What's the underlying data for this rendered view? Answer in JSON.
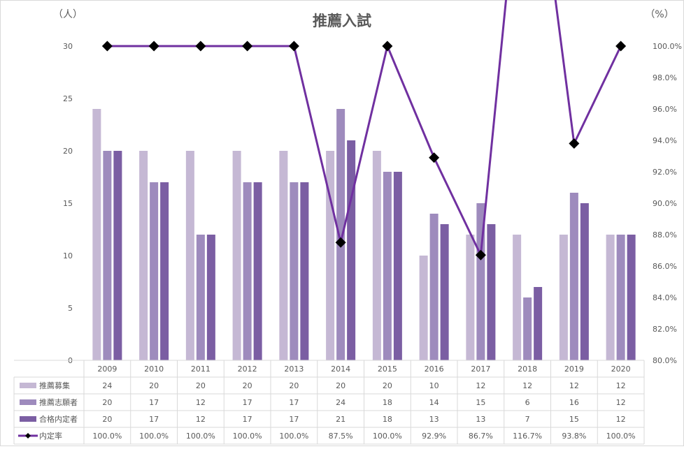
{
  "chart_data": {
    "type": "bar",
    "title": "推薦入試",
    "left_unit": "（人）",
    "right_unit": "（%）",
    "categories": [
      "2009",
      "2010",
      "2011",
      "2012",
      "2013",
      "2014",
      "2015",
      "2016",
      "2017",
      "2018",
      "2019",
      "2020"
    ],
    "ylim": [
      0,
      30
    ],
    "y_ticks": [
      "0",
      "5",
      "10",
      "15",
      "20",
      "25",
      "30"
    ],
    "y2lim": [
      80,
      100
    ],
    "y2_ticks": [
      "80.0%",
      "82.0%",
      "84.0%",
      "86.0%",
      "88.0%",
      "90.0%",
      "92.0%",
      "94.0%",
      "96.0%",
      "98.0%",
      "100.0%"
    ],
    "grid": false,
    "series": [
      {
        "name": "推薦募集",
        "kind": "bar",
        "color": "#c5b8d4",
        "values": [
          24,
          20,
          20,
          20,
          20,
          20,
          20,
          10,
          12,
          12,
          12,
          12
        ]
      },
      {
        "name": "推薦志願者",
        "kind": "bar",
        "color": "#9e8bbd",
        "values": [
          20,
          17,
          12,
          17,
          17,
          24,
          18,
          14,
          15,
          6,
          16,
          12
        ]
      },
      {
        "name": "合格内定者",
        "kind": "bar",
        "color": "#7b5ea3",
        "values": [
          20,
          17,
          12,
          17,
          17,
          21,
          18,
          13,
          13,
          7,
          15,
          12
        ]
      },
      {
        "name": "内定率",
        "kind": "line",
        "color": "#7030a0",
        "marker_color": "#000000",
        "values": [
          100.0,
          100.0,
          100.0,
          100.0,
          100.0,
          87.5,
          100.0,
          92.9,
          86.7,
          116.7,
          93.8,
          100.0
        ]
      }
    ],
    "table": {
      "rows": [
        [
          "24",
          "20",
          "20",
          "20",
          "20",
          "20",
          "20",
          "10",
          "12",
          "12",
          "12",
          "12"
        ],
        [
          "20",
          "17",
          "12",
          "17",
          "17",
          "24",
          "18",
          "14",
          "15",
          "6",
          "16",
          "12"
        ],
        [
          "20",
          "17",
          "12",
          "17",
          "17",
          "21",
          "18",
          "13",
          "13",
          "7",
          "15",
          "12"
        ],
        [
          "100.0%",
          "100.0%",
          "100.0%",
          "100.0%",
          "100.0%",
          "87.5%",
          "100.0%",
          "92.9%",
          "86.7%",
          "116.7%",
          "93.8%",
          "100.0%"
        ]
      ]
    }
  }
}
